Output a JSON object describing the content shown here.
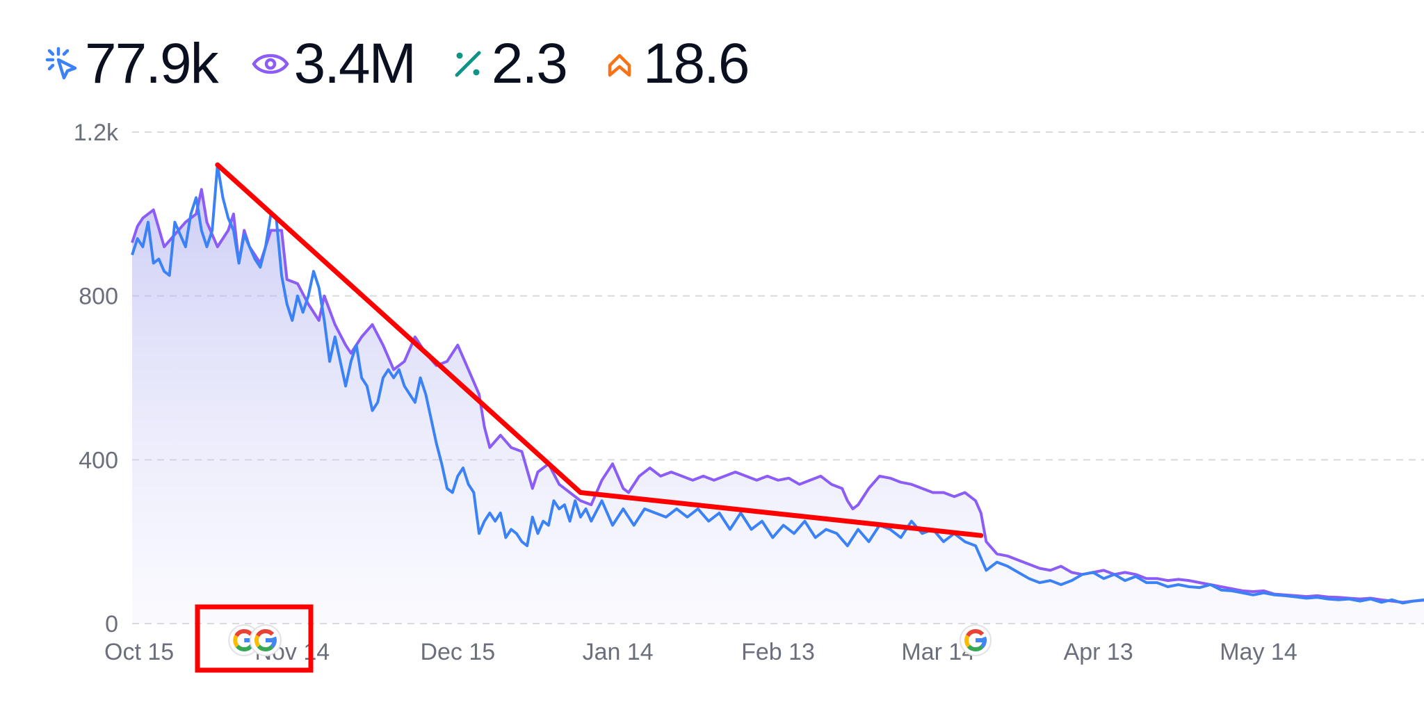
{
  "metrics": [
    {
      "name": "clicks",
      "value": "77.9k",
      "icon": "cursor-click-icon",
      "color": "#3b82f6"
    },
    {
      "name": "impressions",
      "value": "3.4M",
      "icon": "eye-icon",
      "color": "#8b5cf6"
    },
    {
      "name": "ctr",
      "value": "2.3",
      "icon": "percent-icon",
      "color": "#0f9488"
    },
    {
      "name": "position",
      "value": "18.6",
      "icon": "chevron-up-icon",
      "color": "#f97316"
    }
  ],
  "chart_data": {
    "type": "area",
    "x_ticks": [
      "Oct 15",
      "Nov 14",
      "Dec 15",
      "Jan 14",
      "Feb 13",
      "Mar 14",
      "Apr 13",
      "May 14"
    ],
    "y_ticks": [
      "0",
      "400",
      "800",
      "1.2k"
    ],
    "ylim": [
      0,
      1200
    ],
    "x_domain_days": [
      0,
      242
    ],
    "grid": true,
    "series": [
      {
        "key": "impressions",
        "color": "#8b5cf6",
        "points": [
          [
            0,
            930
          ],
          [
            1,
            970
          ],
          [
            2,
            990
          ],
          [
            4,
            1010
          ],
          [
            6,
            920
          ],
          [
            8,
            950
          ],
          [
            10,
            980
          ],
          [
            12,
            1000
          ],
          [
            13,
            1060
          ],
          [
            14,
            980
          ],
          [
            16,
            920
          ],
          [
            18,
            960
          ],
          [
            19,
            1000
          ],
          [
            20,
            880
          ],
          [
            21,
            960
          ],
          [
            22,
            920
          ],
          [
            24,
            880
          ],
          [
            26,
            960
          ],
          [
            28,
            960
          ],
          [
            29,
            840
          ],
          [
            31,
            830
          ],
          [
            33,
            780
          ],
          [
            35,
            740
          ],
          [
            36,
            800
          ],
          [
            38,
            730
          ],
          [
            40,
            680
          ],
          [
            41,
            660
          ],
          [
            43,
            700
          ],
          [
            45,
            730
          ],
          [
            47,
            680
          ],
          [
            49,
            620
          ],
          [
            51,
            640
          ],
          [
            53,
            700
          ],
          [
            55,
            660
          ],
          [
            57,
            630
          ],
          [
            59,
            640
          ],
          [
            61,
            680
          ],
          [
            63,
            620
          ],
          [
            65,
            560
          ],
          [
            66,
            480
          ],
          [
            67,
            430
          ],
          [
            69,
            460
          ],
          [
            71,
            430
          ],
          [
            73,
            420
          ],
          [
            75,
            330
          ],
          [
            76,
            370
          ],
          [
            78,
            390
          ],
          [
            80,
            340
          ],
          [
            82,
            320
          ],
          [
            84,
            300
          ],
          [
            86,
            290
          ],
          [
            88,
            350
          ],
          [
            90,
            390
          ],
          [
            92,
            330
          ],
          [
            93,
            320
          ],
          [
            95,
            360
          ],
          [
            97,
            380
          ],
          [
            99,
            360
          ],
          [
            101,
            370
          ],
          [
            103,
            360
          ],
          [
            105,
            350
          ],
          [
            107,
            360
          ],
          [
            109,
            350
          ],
          [
            111,
            360
          ],
          [
            113,
            370
          ],
          [
            115,
            360
          ],
          [
            117,
            350
          ],
          [
            119,
            360
          ],
          [
            121,
            350
          ],
          [
            123,
            355
          ],
          [
            125,
            340
          ],
          [
            127,
            350
          ],
          [
            129,
            360
          ],
          [
            131,
            340
          ],
          [
            133,
            330
          ],
          [
            134,
            300
          ],
          [
            135,
            280
          ],
          [
            136,
            290
          ],
          [
            138,
            330
          ],
          [
            140,
            360
          ],
          [
            142,
            355
          ],
          [
            144,
            345
          ],
          [
            146,
            340
          ],
          [
            148,
            330
          ],
          [
            150,
            320
          ],
          [
            152,
            320
          ],
          [
            154,
            310
          ],
          [
            156,
            320
          ],
          [
            158,
            300
          ],
          [
            159,
            270
          ],
          [
            160,
            200
          ],
          [
            162,
            170
          ],
          [
            164,
            165
          ],
          [
            166,
            155
          ],
          [
            168,
            145
          ],
          [
            170,
            135
          ],
          [
            172,
            130
          ],
          [
            174,
            140
          ],
          [
            176,
            125
          ],
          [
            178,
            120
          ],
          [
            180,
            125
          ],
          [
            182,
            130
          ],
          [
            184,
            120
          ],
          [
            186,
            125
          ],
          [
            188,
            120
          ],
          [
            190,
            110
          ],
          [
            192,
            110
          ],
          [
            194,
            105
          ],
          [
            196,
            108
          ],
          [
            198,
            105
          ],
          [
            200,
            100
          ],
          [
            202,
            95
          ],
          [
            204,
            90
          ],
          [
            206,
            85
          ],
          [
            208,
            80
          ],
          [
            210,
            78
          ],
          [
            212,
            80
          ],
          [
            214,
            72
          ],
          [
            216,
            70
          ],
          [
            218,
            68
          ],
          [
            220,
            66
          ],
          [
            222,
            68
          ],
          [
            224,
            65
          ],
          [
            226,
            64
          ],
          [
            228,
            62
          ],
          [
            230,
            60
          ],
          [
            232,
            62
          ],
          [
            234,
            58
          ],
          [
            236,
            55
          ],
          [
            238,
            52
          ],
          [
            240,
            55
          ],
          [
            242,
            57
          ]
        ]
      },
      {
        "key": "clicks",
        "color": "#3b82f6",
        "points": [
          [
            0,
            900
          ],
          [
            1,
            940
          ],
          [
            2,
            920
          ],
          [
            3,
            980
          ],
          [
            4,
            880
          ],
          [
            5,
            890
          ],
          [
            6,
            860
          ],
          [
            7,
            850
          ],
          [
            8,
            980
          ],
          [
            9,
            950
          ],
          [
            10,
            920
          ],
          [
            11,
            1000
          ],
          [
            12,
            1040
          ],
          [
            13,
            960
          ],
          [
            14,
            920
          ],
          [
            15,
            960
          ],
          [
            16,
            1120
          ],
          [
            17,
            1040
          ],
          [
            18,
            990
          ],
          [
            19,
            960
          ],
          [
            20,
            880
          ],
          [
            21,
            950
          ],
          [
            22,
            920
          ],
          [
            23,
            890
          ],
          [
            24,
            870
          ],
          [
            25,
            920
          ],
          [
            26,
            1000
          ],
          [
            27,
            990
          ],
          [
            28,
            850
          ],
          [
            29,
            780
          ],
          [
            30,
            740
          ],
          [
            31,
            800
          ],
          [
            32,
            760
          ],
          [
            33,
            800
          ],
          [
            34,
            860
          ],
          [
            35,
            820
          ],
          [
            36,
            740
          ],
          [
            37,
            640
          ],
          [
            38,
            700
          ],
          [
            39,
            640
          ],
          [
            40,
            580
          ],
          [
            41,
            640
          ],
          [
            42,
            680
          ],
          [
            43,
            600
          ],
          [
            44,
            580
          ],
          [
            45,
            520
          ],
          [
            46,
            540
          ],
          [
            47,
            600
          ],
          [
            48,
            620
          ],
          [
            49,
            600
          ],
          [
            50,
            620
          ],
          [
            51,
            580
          ],
          [
            52,
            560
          ],
          [
            53,
            540
          ],
          [
            54,
            600
          ],
          [
            55,
            560
          ],
          [
            56,
            500
          ],
          [
            57,
            440
          ],
          [
            58,
            390
          ],
          [
            59,
            330
          ],
          [
            60,
            320
          ],
          [
            61,
            360
          ],
          [
            62,
            380
          ],
          [
            63,
            340
          ],
          [
            64,
            320
          ],
          [
            65,
            220
          ],
          [
            66,
            250
          ],
          [
            67,
            270
          ],
          [
            68,
            250
          ],
          [
            69,
            270
          ],
          [
            70,
            210
          ],
          [
            71,
            230
          ],
          [
            72,
            220
          ],
          [
            73,
            200
          ],
          [
            74,
            190
          ],
          [
            75,
            260
          ],
          [
            76,
            220
          ],
          [
            77,
            250
          ],
          [
            78,
            240
          ],
          [
            79,
            300
          ],
          [
            80,
            280
          ],
          [
            81,
            290
          ],
          [
            82,
            250
          ],
          [
            83,
            300
          ],
          [
            84,
            260
          ],
          [
            85,
            280
          ],
          [
            86,
            250
          ],
          [
            88,
            300
          ],
          [
            90,
            240
          ],
          [
            92,
            280
          ],
          [
            94,
            240
          ],
          [
            96,
            280
          ],
          [
            98,
            270
          ],
          [
            100,
            260
          ],
          [
            102,
            280
          ],
          [
            104,
            260
          ],
          [
            106,
            280
          ],
          [
            108,
            250
          ],
          [
            110,
            270
          ],
          [
            112,
            230
          ],
          [
            114,
            270
          ],
          [
            116,
            230
          ],
          [
            118,
            250
          ],
          [
            120,
            210
          ],
          [
            122,
            240
          ],
          [
            124,
            220
          ],
          [
            126,
            250
          ],
          [
            128,
            210
          ],
          [
            130,
            230
          ],
          [
            132,
            220
          ],
          [
            134,
            190
          ],
          [
            136,
            230
          ],
          [
            138,
            200
          ],
          [
            140,
            240
          ],
          [
            142,
            230
          ],
          [
            144,
            210
          ],
          [
            146,
            250
          ],
          [
            148,
            220
          ],
          [
            150,
            230
          ],
          [
            152,
            200
          ],
          [
            154,
            220
          ],
          [
            156,
            200
          ],
          [
            158,
            190
          ],
          [
            159,
            160
          ],
          [
            160,
            130
          ],
          [
            162,
            150
          ],
          [
            164,
            140
          ],
          [
            166,
            125
          ],
          [
            168,
            110
          ],
          [
            170,
            100
          ],
          [
            172,
            105
          ],
          [
            174,
            95
          ],
          [
            176,
            105
          ],
          [
            178,
            120
          ],
          [
            180,
            125
          ],
          [
            182,
            110
          ],
          [
            184,
            120
          ],
          [
            186,
            105
          ],
          [
            188,
            115
          ],
          [
            190,
            100
          ],
          [
            192,
            100
          ],
          [
            194,
            90
          ],
          [
            196,
            95
          ],
          [
            198,
            90
          ],
          [
            200,
            88
          ],
          [
            202,
            95
          ],
          [
            204,
            82
          ],
          [
            206,
            80
          ],
          [
            208,
            75
          ],
          [
            210,
            70
          ],
          [
            212,
            75
          ],
          [
            214,
            70
          ],
          [
            216,
            68
          ],
          [
            218,
            65
          ],
          [
            220,
            62
          ],
          [
            222,
            64
          ],
          [
            224,
            60
          ],
          [
            226,
            58
          ],
          [
            228,
            60
          ],
          [
            230,
            55
          ],
          [
            232,
            60
          ],
          [
            234,
            52
          ],
          [
            236,
            58
          ],
          [
            238,
            50
          ],
          [
            240,
            55
          ],
          [
            242,
            58
          ]
        ]
      }
    ],
    "annotation_line": [
      [
        16,
        1120
      ],
      [
        84,
        320
      ],
      [
        159,
        215
      ]
    ],
    "annotation_color": "#ff0000",
    "update_markers": [
      {
        "day": 21,
        "label": "G",
        "highlighted": true
      },
      {
        "day": 25,
        "label": "G",
        "highlighted": true
      },
      {
        "day": 158,
        "label": "G",
        "highlighted": false
      }
    ]
  }
}
